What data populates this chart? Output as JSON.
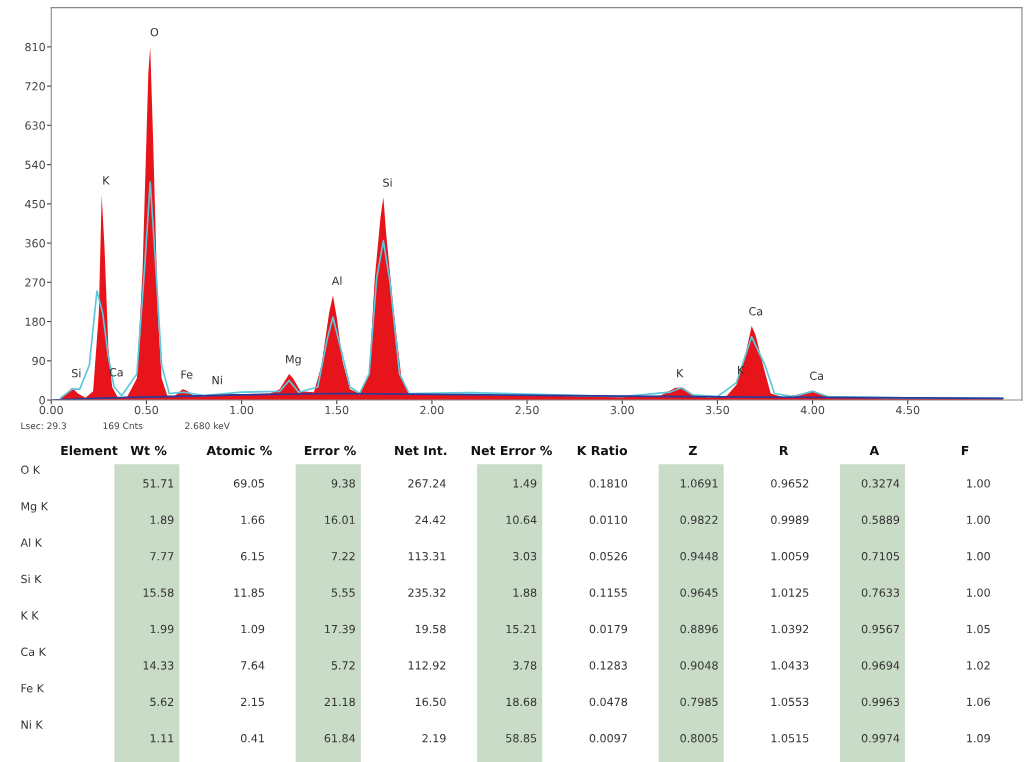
{
  "chart_data": [
    {
      "type": "area",
      "xlim": [
        0,
        5.1
      ],
      "ylim": [
        0,
        900
      ],
      "xticks": [
        {
          "value": 0,
          "label": "0.00"
        },
        {
          "value": 0.5,
          "label": "0.50"
        },
        {
          "value": 1,
          "label": "1.00"
        },
        {
          "value": 1.5,
          "label": "1.50"
        },
        {
          "value": 2,
          "label": "2.00"
        },
        {
          "value": 2.5,
          "label": "2.50"
        },
        {
          "value": 3,
          "label": "3.00"
        },
        {
          "value": 3.5,
          "label": "3.50"
        },
        {
          "value": 4,
          "label": "4.00"
        },
        {
          "value": 4.5,
          "label": "4.50"
        }
      ],
      "yticks": [
        0,
        90,
        180,
        270,
        360,
        450,
        540,
        630,
        720,
        810
      ],
      "series": [
        {
          "type": "area",
          "color": "#e8141c",
          "x": [
            0.05,
            0.08,
            0.11,
            0.14,
            0.18,
            0.22,
            0.25,
            0.265,
            0.28,
            0.3,
            0.32,
            0.35,
            0.4,
            0.45,
            0.48,
            0.51,
            0.52,
            0.535,
            0.56,
            0.58,
            0.61,
            0.65,
            0.69,
            0.71,
            0.75,
            0.85,
            0.95,
            1.05,
            1.15,
            1.2,
            1.25,
            1.27,
            1.31,
            1.38,
            1.42,
            1.46,
            1.48,
            1.5,
            1.53,
            1.57,
            1.62,
            1.67,
            1.7,
            1.73,
            1.745,
            1.76,
            1.8,
            1.84,
            1.88,
            1.95,
            2.1,
            2.5,
            3.0,
            3.2,
            3.28,
            3.32,
            3.37,
            3.45,
            3.55,
            3.6,
            3.65,
            3.68,
            3.7,
            3.74,
            3.78,
            3.85,
            3.95,
            4.0,
            4.04,
            4.1,
            4.5,
            5.0
          ],
          "values": [
            5,
            15,
            28,
            15,
            5,
            20,
            200,
            470,
            350,
            120,
            30,
            5,
            8,
            50,
            300,
            750,
            810,
            600,
            200,
            50,
            10,
            10,
            25,
            22,
            10,
            12,
            14,
            14,
            15,
            25,
            60,
            50,
            20,
            18,
            80,
            200,
            240,
            190,
            90,
            25,
            15,
            60,
            280,
            420,
            465,
            380,
            200,
            50,
            15,
            12,
            12,
            10,
            8,
            10,
            28,
            28,
            12,
            6,
            10,
            35,
            110,
            170,
            150,
            80,
            15,
            6,
            15,
            22,
            15,
            5,
            4,
            3
          ]
        },
        {
          "type": "line",
          "color": "#5bc8dc",
          "x": [
            0.05,
            0.11,
            0.15,
            0.2,
            0.24,
            0.27,
            0.3,
            0.33,
            0.37,
            0.45,
            0.49,
            0.52,
            0.55,
            0.58,
            0.62,
            0.7,
            0.8,
            1.0,
            1.2,
            1.25,
            1.3,
            1.4,
            1.45,
            1.48,
            1.52,
            1.57,
            1.62,
            1.67,
            1.71,
            1.745,
            1.78,
            1.83,
            1.88,
            2.2,
            3.0,
            3.25,
            3.31,
            3.37,
            3.5,
            3.6,
            3.68,
            3.75,
            3.8,
            3.9,
            4.0,
            4.08,
            4.5,
            5.0
          ],
          "values": [
            5,
            25,
            25,
            80,
            250,
            200,
            100,
            30,
            10,
            60,
            300,
            500,
            300,
            80,
            15,
            18,
            10,
            18,
            20,
            45,
            18,
            30,
            140,
            190,
            120,
            30,
            15,
            60,
            280,
            365,
            270,
            60,
            15,
            17,
            8,
            18,
            28,
            12,
            8,
            40,
            145,
            80,
            15,
            8,
            20,
            8,
            5,
            4
          ]
        },
        {
          "type": "line",
          "color": "#2a3a9a",
          "x": [
            0,
            0.3,
            0.6,
            1.0,
            1.5,
            2.0,
            3.0,
            4.0,
            5.0
          ],
          "values": [
            0,
            5,
            8,
            12,
            15,
            13,
            9,
            6,
            4
          ]
        }
      ],
      "annotations": [
        {
          "text": "Si",
          "x": 0.11,
          "y": 28
        },
        {
          "text": "K",
          "x": 0.265,
          "y": 470
        },
        {
          "text": "Ca",
          "x": 0.32,
          "y": 30
        },
        {
          "text": "O",
          "x": 0.52,
          "y": 810
        },
        {
          "text": "Fe",
          "x": 0.69,
          "y": 25
        },
        {
          "text": "Ni",
          "x": 0.85,
          "y": 12
        },
        {
          "text": "Mg",
          "x": 1.25,
          "y": 60
        },
        {
          "text": "Al",
          "x": 1.48,
          "y": 240
        },
        {
          "text": "Si",
          "x": 1.745,
          "y": 465
        },
        {
          "text": "K",
          "x": 3.28,
          "y": 28
        },
        {
          "text": "K",
          "x": 3.6,
          "y": 35
        },
        {
          "text": "Ca",
          "x": 3.68,
          "y": 170
        },
        {
          "text": "Ca",
          "x": 4.0,
          "y": 22
        },
        "Lsec: 29.3",
        "169 Cnts",
        "2.680 keV"
      ]
    },
    {
      "type": "other",
      "categories": [
        "Element",
        "Wt %",
        "Atomic %",
        "Error %",
        "Net Int.",
        "Net Error %",
        "K Ratio",
        "Z",
        "R",
        "A",
        "F"
      ],
      "colors": [
        null,
        "#c8dcc8",
        null,
        "#c8dcc8",
        null,
        "#c8dcc8",
        null,
        "#c8dcc8",
        null,
        "#c8dcc8",
        null
      ],
      "y_categories": [
        "O K",
        "Mg K",
        "Al K",
        "Si K",
        "K K",
        "Ca K",
        "Fe K",
        "Ni K"
      ],
      "cell_labels": [
        [
          "51.71",
          "69.05",
          "9.38",
          "267.24",
          "1.49",
          "0.1810",
          "1.0691",
          "0.9652",
          "0.3274",
          "1.00"
        ],
        [
          "1.89",
          "1.66",
          "16.01",
          "24.42",
          "10.64",
          "0.0110",
          "0.9822",
          "0.9989",
          "0.5889",
          "1.00"
        ],
        [
          "7.77",
          "6.15",
          "7.22",
          "113.31",
          "3.03",
          "0.0526",
          "0.9448",
          "1.0059",
          "0.7105",
          "1.00"
        ],
        [
          "15.58",
          "11.85",
          "5.55",
          "235.32",
          "1.88",
          "0.1155",
          "0.9645",
          "1.0125",
          "0.7633",
          "1.00"
        ],
        [
          "1.99",
          "1.09",
          "17.39",
          "19.58",
          "15.21",
          "0.0179",
          "0.8896",
          "1.0392",
          "0.9567",
          "1.05"
        ],
        [
          "14.33",
          "7.64",
          "5.72",
          "112.92",
          "3.78",
          "0.1283",
          "0.9048",
          "1.0433",
          "0.9694",
          "1.02"
        ],
        [
          "5.62",
          "2.15",
          "21.18",
          "16.50",
          "18.68",
          "0.0478",
          "0.7985",
          "1.0553",
          "0.9963",
          "1.06"
        ],
        [
          "1.11",
          "0.41",
          "61.84",
          "2.19",
          "58.85",
          "0.0097",
          "0.8005",
          "1.0515",
          "0.9974",
          "1.09"
        ]
      ]
    }
  ]
}
